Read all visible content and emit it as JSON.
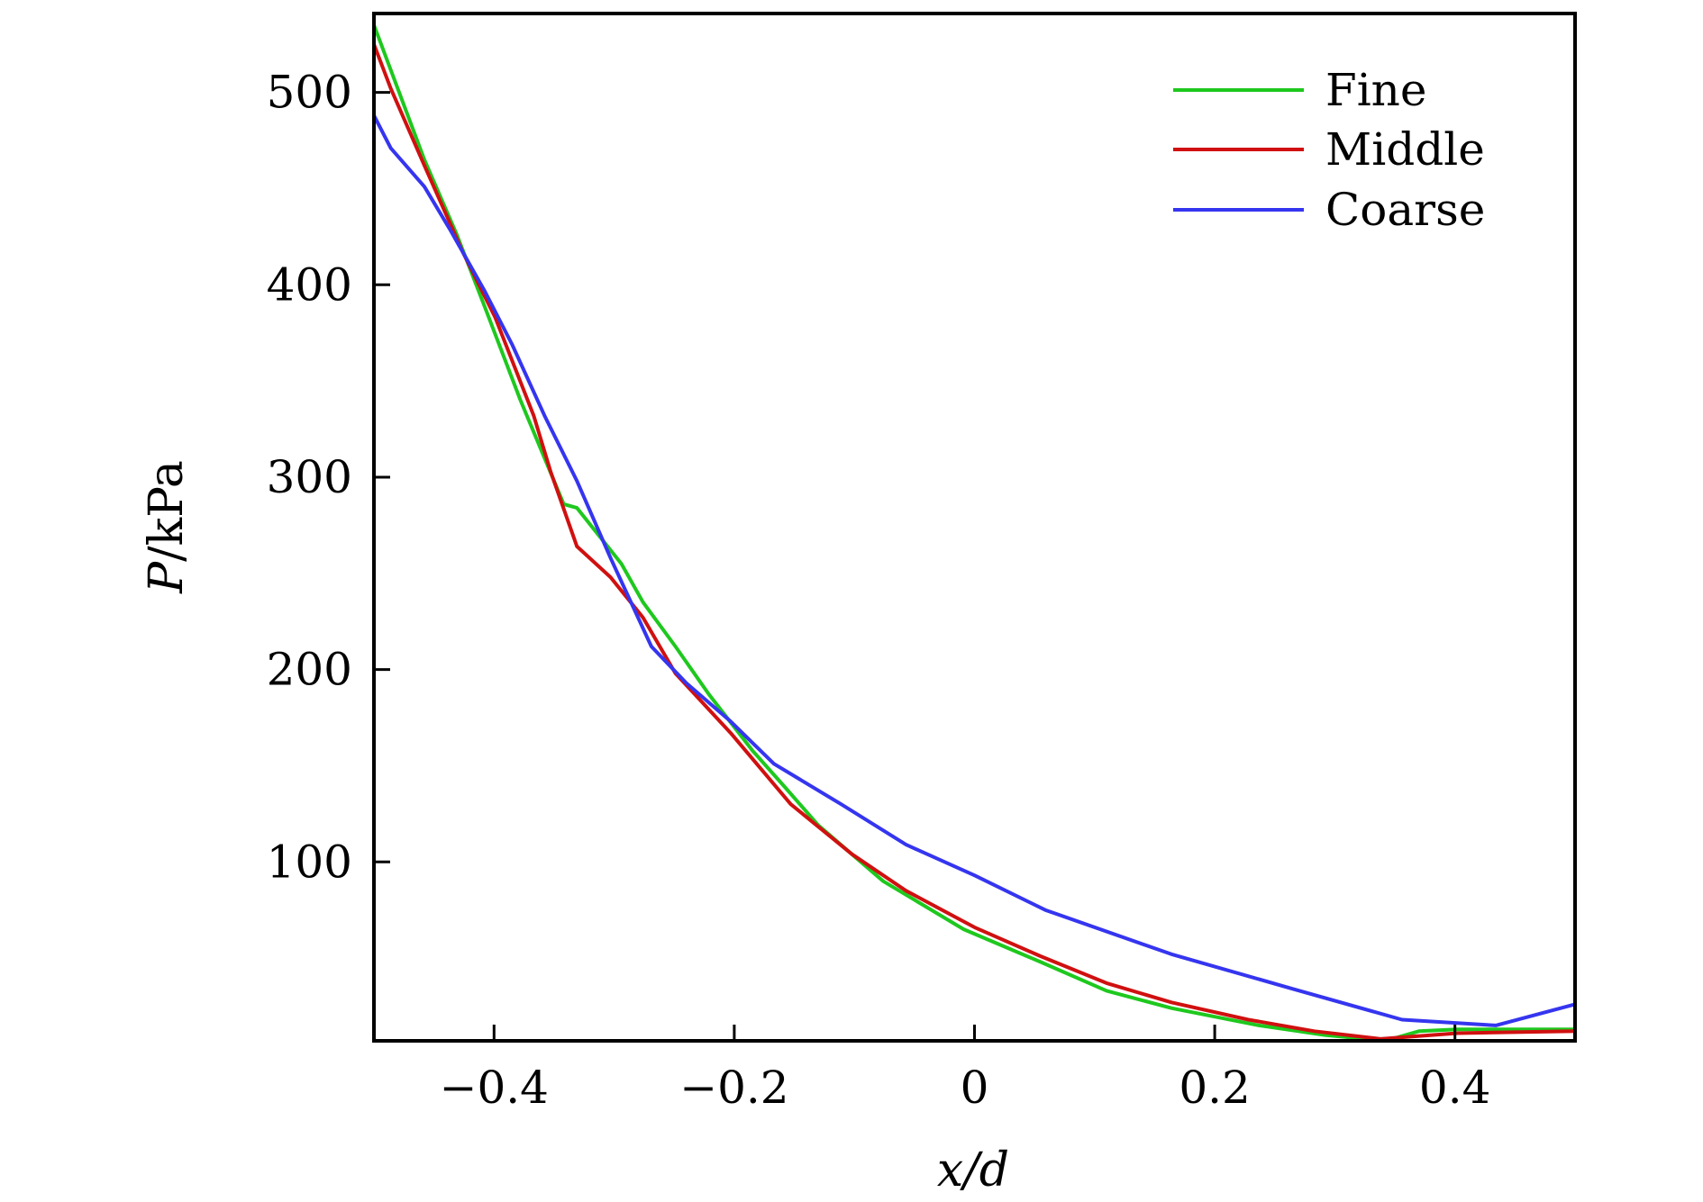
{
  "chart_data": {
    "type": "line",
    "title": "",
    "xlabel": "x/d",
    "ylabel": "P/kPa",
    "xlim": [
      -0.5,
      0.5
    ],
    "ylim": [
      7,
      541
    ],
    "grid": false,
    "legend": "top-right",
    "xticks": [
      -0.4,
      -0.2,
      0,
      0.2,
      0.4
    ],
    "xtick_labels": [
      "−0.4",
      "−0.2",
      "0",
      "0.2",
      "0.4"
    ],
    "yticks": [
      100,
      200,
      300,
      400,
      500
    ],
    "ytick_labels": [
      "100",
      "200",
      "300",
      "400",
      "500"
    ],
    "series": [
      {
        "name": "Fine",
        "color": "#1ec81e",
        "x": [
          -0.5,
          -0.458,
          -0.431,
          -0.408,
          -0.378,
          -0.342,
          -0.331,
          -0.294,
          -0.276,
          -0.249,
          -0.221,
          -0.185,
          -0.158,
          -0.13,
          -0.076,
          -0.009,
          0.055,
          0.11,
          0.164,
          0.237,
          0.292,
          0.342,
          0.37,
          0.402,
          0.5
        ],
        "y": [
          535,
          465,
          426,
          389,
          340,
          286,
          284,
          255,
          235,
          212,
          187,
          158,
          139,
          119,
          90,
          65,
          48,
          33,
          24,
          15,
          10,
          7,
          12,
          13,
          13
        ]
      },
      {
        "name": "Middle",
        "color": "#d01010",
        "x": [
          -0.5,
          -0.486,
          -0.458,
          -0.426,
          -0.399,
          -0.367,
          -0.353,
          -0.331,
          -0.303,
          -0.276,
          -0.249,
          -0.203,
          -0.153,
          -0.102,
          -0.057,
          0.0,
          0.055,
          0.11,
          0.164,
          0.228,
          0.283,
          0.338,
          0.402,
          0.5
        ],
        "y": [
          525,
          502,
          462,
          417,
          383,
          332,
          303,
          264,
          248,
          227,
          198,
          167,
          130,
          104,
          85,
          66,
          51,
          37,
          27,
          18,
          12,
          8,
          11,
          12
        ]
      },
      {
        "name": "Coarse",
        "color": "#3535f0",
        "x": [
          -0.5,
          -0.486,
          -0.458,
          -0.436,
          -0.408,
          -0.385,
          -0.358,
          -0.331,
          -0.303,
          -0.269,
          -0.24,
          -0.203,
          -0.167,
          -0.111,
          -0.057,
          0.0,
          0.059,
          0.164,
          0.265,
          0.356,
          0.434,
          0.5
        ],
        "y": [
          488,
          471,
          451,
          428,
          397,
          369,
          332,
          298,
          258,
          212,
          193,
          173,
          151,
          130,
          109,
          93,
          75,
          52,
          34,
          18,
          15,
          26
        ]
      }
    ]
  }
}
